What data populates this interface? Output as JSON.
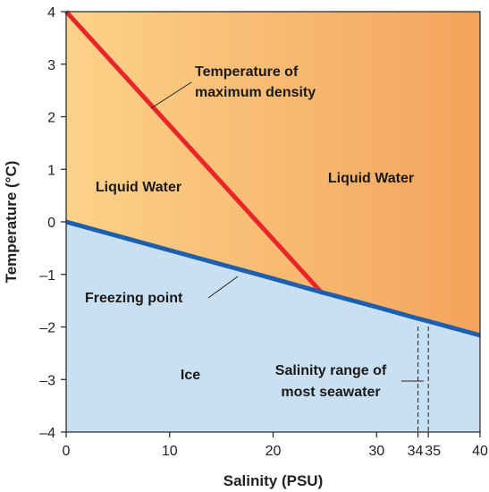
{
  "chart_data": {
    "type": "line",
    "xlabel": "Salinity (PSU)",
    "ylabel": "Temperature (°C)",
    "xlim": [
      0,
      40
    ],
    "ylim": [
      -4,
      4
    ],
    "x_ticks": [
      0,
      10,
      20,
      30,
      34,
      35,
      40
    ],
    "y_ticks": [
      4,
      3,
      2,
      1,
      0,
      -1,
      -2,
      -3,
      -4
    ],
    "y_tick_labels": [
      "4",
      "3",
      "2",
      "1",
      "0",
      "–1",
      "–2",
      "–3",
      "–4"
    ],
    "grid": false,
    "series": [
      {
        "name": "Temperature of maximum density",
        "color": "#e8262a",
        "x": [
          0,
          24.7
        ],
        "y": [
          4.0,
          -1.35
        ]
      },
      {
        "name": "Freezing point",
        "color": "#1c5fae",
        "x": [
          0,
          10,
          20,
          24.7,
          30,
          34,
          35,
          40
        ],
        "y": [
          0.0,
          -0.54,
          -1.08,
          -1.34,
          -1.62,
          -1.84,
          -1.89,
          -2.16
        ]
      }
    ],
    "regions": [
      {
        "label": "Liquid Water",
        "color": "#f5b461"
      },
      {
        "label": "Liquid Water",
        "color": "#f5b461"
      },
      {
        "label": "Ice",
        "color": "#c9dff2"
      }
    ],
    "annotations": [
      {
        "lines": [
          "Temperature of",
          "maximum density"
        ]
      },
      {
        "lines": [
          "Freezing point"
        ]
      },
      {
        "lines": [
          "Salinity range of",
          "most seawater"
        ]
      }
    ],
    "seawater_range": [
      34,
      35
    ]
  }
}
